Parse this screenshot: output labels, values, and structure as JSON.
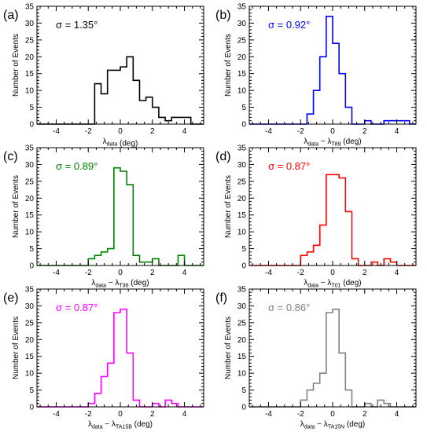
{
  "figure": {
    "ylabel": "Number of Events"
  },
  "chart_data": [
    {
      "type": "histogram",
      "panel_label": "(a)",
      "color": "#000000",
      "annotation": "σ = 1.35°",
      "xlabel_main": "λ",
      "xlabel_sub": "data",
      "xlabel_rest": "",
      "xlabel_sub2": "",
      "xlabel_unit": " (deg)",
      "xlim": [
        -5.2,
        5.2
      ],
      "ylim": [
        0,
        35
      ],
      "xticks": [
        -4,
        -2,
        0,
        2,
        4
      ],
      "yticks": [
        0,
        5,
        10,
        15,
        20,
        25,
        30,
        35
      ],
      "bin_edges": [
        -5.2,
        -1.6,
        -1.2,
        -0.8,
        -0.4,
        0.0,
        0.4,
        0.8,
        1.2,
        1.6,
        2.0,
        2.4,
        2.8,
        3.2,
        3.6,
        4.0,
        4.4,
        5.2
      ],
      "counts": [
        0,
        12,
        9,
        16,
        16,
        17,
        20,
        13,
        7,
        8,
        5,
        2,
        1,
        2,
        2,
        2,
        0
      ]
    },
    {
      "type": "histogram",
      "panel_label": "(b)",
      "color": "#0000ff",
      "annotation": "σ = 0.92°",
      "xlabel_main": "λ",
      "xlabel_sub": "data",
      "xlabel_rest": " − λ",
      "xlabel_sub2": "T89",
      "xlabel_unit": " (deg)",
      "xlim": [
        -5.2,
        5.2
      ],
      "ylim": [
        0,
        35
      ],
      "xticks": [
        -4,
        -2,
        0,
        2,
        4
      ],
      "yticks": [
        0,
        5,
        10,
        15,
        20,
        25,
        30,
        35
      ],
      "bin_edges": [
        -5.2,
        -1.6,
        -1.2,
        -0.8,
        -0.4,
        0.0,
        0.4,
        0.8,
        1.2,
        1.6,
        2.0,
        2.4,
        2.8,
        3.2,
        3.6,
        4.0,
        4.4,
        4.8,
        5.2
      ],
      "counts": [
        0,
        3,
        10,
        20,
        32,
        24,
        15,
        5,
        0,
        0,
        1,
        0,
        0,
        1,
        1,
        1,
        1,
        0
      ]
    },
    {
      "type": "histogram",
      "panel_label": "(c)",
      "color": "#008000",
      "annotation": "σ = 0.89°",
      "xlabel_main": "λ",
      "xlabel_sub": "data",
      "xlabel_rest": " − λ",
      "xlabel_sub2": "T96",
      "xlabel_unit": " (deg)",
      "xlim": [
        -5.2,
        5.2
      ],
      "ylim": [
        0,
        35
      ],
      "xticks": [
        -4,
        -2,
        0,
        2,
        4
      ],
      "yticks": [
        0,
        5,
        10,
        15,
        20,
        25,
        30,
        35
      ],
      "bin_edges": [
        -5.2,
        -2.0,
        -1.6,
        -1.2,
        -0.8,
        -0.4,
        0.0,
        0.4,
        0.8,
        1.2,
        1.6,
        2.0,
        2.4,
        3.6,
        4.0,
        5.2
      ],
      "counts": [
        0,
        2,
        3,
        4,
        5,
        29,
        28,
        24,
        3,
        1,
        1,
        2,
        0,
        3,
        0
      ]
    },
    {
      "type": "histogram",
      "panel_label": "(d)",
      "color": "#ff0000",
      "annotation": "σ = 0.87°",
      "xlabel_main": "λ",
      "xlabel_sub": "data",
      "xlabel_rest": " − λ",
      "xlabel_sub2": "T01",
      "xlabel_unit": " (deg)",
      "xlim": [
        -5.2,
        5.2
      ],
      "ylim": [
        0,
        35
      ],
      "xticks": [
        -4,
        -2,
        0,
        2,
        4
      ],
      "yticks": [
        0,
        5,
        10,
        15,
        20,
        25,
        30,
        35
      ],
      "bin_edges": [
        -5.2,
        -2.0,
        -1.6,
        -1.2,
        -0.8,
        -0.4,
        0.0,
        0.4,
        0.8,
        1.2,
        1.6,
        2.0,
        2.4,
        2.8,
        3.2,
        3.6,
        4.0,
        5.2
      ],
      "counts": [
        0,
        3,
        4,
        6,
        12,
        27,
        27,
        26,
        16,
        2,
        0,
        0,
        1,
        0,
        2,
        1,
        0
      ]
    },
    {
      "type": "histogram",
      "panel_label": "(e)",
      "color": "#ff00ff",
      "annotation": "σ = 0.87°",
      "xlabel_main": "λ",
      "xlabel_sub": "data",
      "xlabel_rest": " − λ",
      "xlabel_sub2": "TA15B",
      "xlabel_unit": " (deg)",
      "xlim": [
        -5.2,
        5.2
      ],
      "ylim": [
        0,
        35
      ],
      "xticks": [
        -4,
        -2,
        0,
        2,
        4
      ],
      "yticks": [
        0,
        5,
        10,
        15,
        20,
        25,
        30,
        35
      ],
      "bin_edges": [
        -5.2,
        -2.0,
        -1.6,
        -1.2,
        -0.8,
        -0.4,
        0.0,
        0.4,
        0.8,
        1.2,
        1.6,
        2.0,
        2.4,
        2.8,
        3.2,
        3.6,
        4.0,
        5.2
      ],
      "counts": [
        0,
        1,
        4,
        9,
        13,
        28,
        29,
        16,
        2,
        0,
        0,
        1,
        0,
        2,
        1,
        0,
        0
      ]
    },
    {
      "type": "histogram",
      "panel_label": "(f)",
      "color": "#808080",
      "annotation": "σ = 0.86°",
      "xlabel_main": "λ",
      "xlabel_sub": "data",
      "xlabel_rest": " − λ",
      "xlabel_sub2": "TA15N",
      "xlabel_unit": " (deg)",
      "xlim": [
        -5.2,
        5.2
      ],
      "ylim": [
        0,
        35
      ],
      "xticks": [
        -4,
        -2,
        0,
        2,
        4
      ],
      "yticks": [
        0,
        5,
        10,
        15,
        20,
        25,
        30,
        35
      ],
      "bin_edges": [
        -5.2,
        -2.0,
        -1.6,
        -1.2,
        -0.8,
        -0.4,
        0.0,
        0.4,
        0.8,
        1.2,
        1.6,
        2.0,
        2.4,
        2.8,
        3.2,
        3.6,
        4.0,
        5.2
      ],
      "counts": [
        0,
        2,
        5,
        7,
        10,
        28,
        29,
        16,
        5,
        0,
        0,
        1,
        0,
        2,
        1,
        0,
        0
      ]
    }
  ]
}
